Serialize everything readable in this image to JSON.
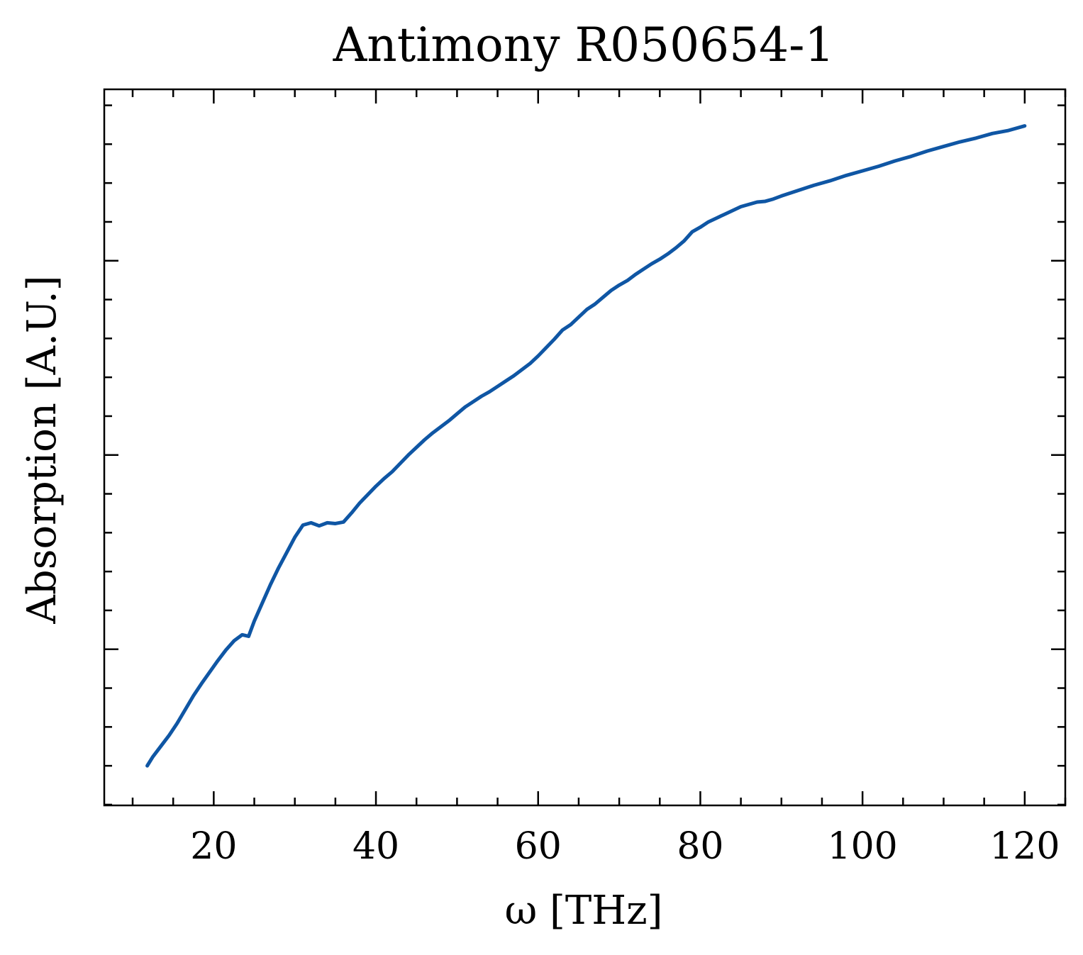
{
  "chart_data": {
    "type": "line",
    "title": "Antimony R050654-1",
    "xlabel": "ω [THz]",
    "ylabel": "Absorption [A.U.]",
    "xlim": [
      6.5,
      125
    ],
    "ylim": [
      0.06,
      1.0
    ],
    "x_ticks": [
      20,
      40,
      60,
      80,
      100,
      120
    ],
    "y_ticks_major": [
      0.265,
      0.52,
      0.775
    ],
    "y_ticks_minor_step": 0.051,
    "x_ticks_minor_step": 5,
    "grid": false,
    "colors": {
      "line": "#0f56a4",
      "axes": "#000000",
      "background": "#ffffff"
    },
    "series": [
      {
        "x": [
          11.8,
          12.5,
          13.5,
          14.5,
          15.5,
          16.5,
          17.5,
          18.5,
          19.5,
          20.5,
          21.5,
          22.5,
          23.5,
          24.3,
          25,
          26,
          27,
          28,
          29,
          30,
          31,
          32,
          33,
          34,
          35,
          36,
          37,
          38,
          39,
          40,
          41,
          42,
          43,
          44,
          45,
          46,
          47,
          48,
          49,
          50,
          51,
          52,
          53,
          54,
          55,
          56,
          57,
          58,
          59,
          60,
          61,
          62,
          63,
          64,
          65,
          66,
          67,
          68,
          69,
          70,
          71,
          72,
          73,
          74,
          75,
          76,
          77,
          78,
          79,
          80,
          81,
          82,
          83,
          84,
          85,
          86,
          87,
          88,
          89,
          90,
          92,
          94,
          96,
          98,
          100,
          102,
          104,
          106,
          108,
          110,
          112,
          114,
          116,
          118,
          120
        ],
        "y": [
          0.112,
          0.124,
          0.138,
          0.152,
          0.168,
          0.186,
          0.204,
          0.22,
          0.235,
          0.25,
          0.264,
          0.276,
          0.284,
          0.282,
          0.302,
          0.326,
          0.35,
          0.372,
          0.392,
          0.412,
          0.428,
          0.431,
          0.427,
          0.431,
          0.43,
          0.432,
          0.444,
          0.457,
          0.468,
          0.479,
          0.489,
          0.498,
          0.509,
          0.52,
          0.53,
          0.54,
          0.549,
          0.557,
          0.565,
          0.574,
          0.583,
          0.59,
          0.597,
          0.603,
          0.61,
          0.617,
          0.624,
          0.632,
          0.64,
          0.65,
          0.661,
          0.672,
          0.684,
          0.691,
          0.701,
          0.711,
          0.718,
          0.727,
          0.736,
          0.743,
          0.749,
          0.757,
          0.764,
          0.771,
          0.777,
          0.784,
          0.792,
          0.801,
          0.813,
          0.819,
          0.826,
          0.831,
          0.836,
          0.841,
          0.846,
          0.849,
          0.852,
          0.853,
          0.856,
          0.86,
          0.867,
          0.874,
          0.88,
          0.887,
          0.893,
          0.899,
          0.906,
          0.912,
          0.919,
          0.925,
          0.931,
          0.936,
          0.942,
          0.946,
          0.952
        ]
      }
    ]
  }
}
